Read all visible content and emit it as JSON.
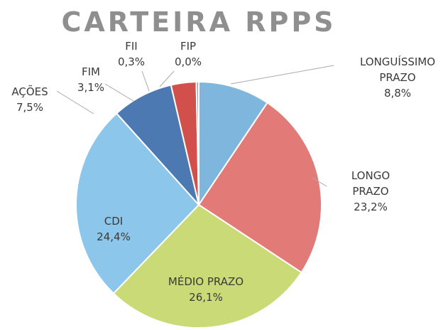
{
  "chart_data": {
    "type": "pie",
    "title": "CARTEIRA RPPS",
    "categories": [
      "LONGUÍSSIMO PRAZO",
      "LONGO PRAZO",
      "MÉDIO PRAZO",
      "CDI",
      "AÇÕES",
      "FIM",
      "FII",
      "FIP"
    ],
    "values": [
      8.8,
      23.2,
      26.1,
      24.4,
      7.5,
      3.1,
      0.3,
      0.0
    ],
    "value_labels": [
      "8,8%",
      "23,2%",
      "26,1%",
      "24,4%",
      "7,5%",
      "3,1%",
      "0,3%",
      "0,0%"
    ],
    "colors": [
      "#7fb6de",
      "#e27b78",
      "#c9da76",
      "#8cc6ea",
      "#4d79b3",
      "#d2504c",
      "#9a9a9a",
      "#3e94bd"
    ]
  }
}
